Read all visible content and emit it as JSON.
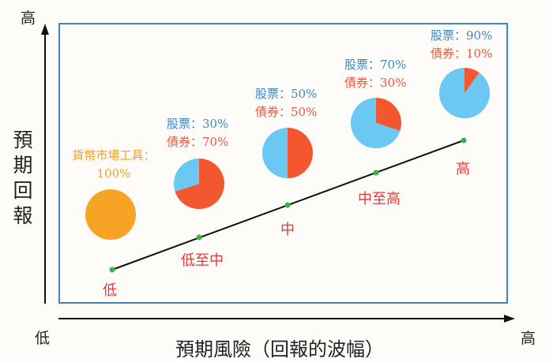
{
  "y_axis": {
    "top_label": "高",
    "title": "預期回報"
  },
  "x_axis": {
    "start_label": "低",
    "end_label": "高",
    "title": "預期風險（回報的波幅）"
  },
  "colors": {
    "stock": "#6bc8f3",
    "bond": "#f2572f",
    "money_market": "#f7a325",
    "line": "#111111",
    "dot": "#38b24a",
    "frame": "#3a87c8"
  },
  "levels": [
    {
      "risk": "低",
      "type": "money_market",
      "line1": "貨幣市場工具：",
      "line2": "100%",
      "stock": 0,
      "bond": 0,
      "money_market": 100
    },
    {
      "risk": "低至中",
      "type": "mix",
      "line1": "股票：30%",
      "line2": "債券：70%",
      "stock": 30,
      "bond": 70
    },
    {
      "risk": "中",
      "type": "mix",
      "line1": "股票：50%",
      "line2": "債券：50%",
      "stock": 50,
      "bond": 50
    },
    {
      "risk": "中至高",
      "type": "mix",
      "line1": "股票：70%",
      "line2": "債券：30%",
      "stock": 70,
      "bond": 30
    },
    {
      "risk": "高",
      "type": "mix",
      "line1": "股票：90%",
      "line2": "債券：10%",
      "stock": 90,
      "bond": 10
    }
  ]
}
